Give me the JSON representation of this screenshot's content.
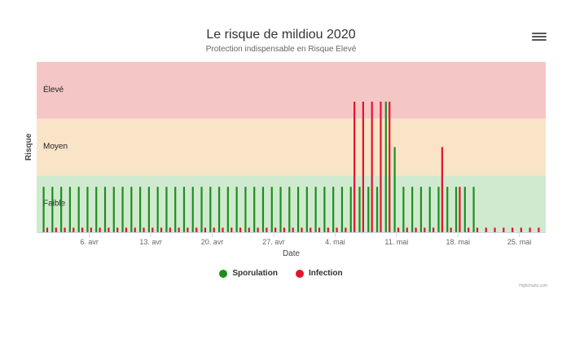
{
  "chart_data": {
    "type": "bar",
    "title": "Le risque de mildiou 2020",
    "subtitle": "Protection indispensable en Risque Elevé",
    "xlabel": "Date",
    "ylabel": "Risque",
    "x_tick_labels": [
      "6. avr",
      "13. avr",
      "20. avr",
      "27. avr",
      "4. mai",
      "11. mai",
      "18. mai",
      "25. mai"
    ],
    "x_tick_dates": [
      "2020-04-06",
      "2020-04-13",
      "2020-04-20",
      "2020-04-27",
      "2020-05-04",
      "2020-05-11",
      "2020-05-18",
      "2020-05-25"
    ],
    "x_range": [
      "2020-03-31",
      "2020-05-28"
    ],
    "ylim": [
      0,
      3
    ],
    "bands": [
      {
        "label": "Faible",
        "from": 0,
        "to": 1,
        "color": "#d0ead0"
      },
      {
        "label": "Moyen",
        "from": 1,
        "to": 2,
        "color": "#f9e4c8"
      },
      {
        "label": "Élevé",
        "from": 2,
        "to": 3,
        "color": "#f5c6c6"
      }
    ],
    "dates": [
      "2020-04-01",
      "2020-04-02",
      "2020-04-03",
      "2020-04-04",
      "2020-04-05",
      "2020-04-06",
      "2020-04-07",
      "2020-04-08",
      "2020-04-09",
      "2020-04-10",
      "2020-04-11",
      "2020-04-12",
      "2020-04-13",
      "2020-04-14",
      "2020-04-15",
      "2020-04-16",
      "2020-04-17",
      "2020-04-18",
      "2020-04-19",
      "2020-04-20",
      "2020-04-21",
      "2020-04-22",
      "2020-04-23",
      "2020-04-24",
      "2020-04-25",
      "2020-04-26",
      "2020-04-27",
      "2020-04-28",
      "2020-04-29",
      "2020-04-30",
      "2020-05-01",
      "2020-05-02",
      "2020-05-03",
      "2020-05-04",
      "2020-05-05",
      "2020-05-06",
      "2020-05-07",
      "2020-05-08",
      "2020-05-09",
      "2020-05-10",
      "2020-05-11",
      "2020-05-12",
      "2020-05-13",
      "2020-05-14",
      "2020-05-15",
      "2020-05-16",
      "2020-05-17",
      "2020-05-18",
      "2020-05-19",
      "2020-05-20",
      "2020-05-21",
      "2020-05-22",
      "2020-05-23",
      "2020-05-24",
      "2020-05-25",
      "2020-05-26",
      "2020-05-27"
    ],
    "series": [
      {
        "name": "Sporulation",
        "color": "#1e8f1e",
        "values": [
          0.8,
          0.8,
          0.8,
          0.8,
          0.8,
          0.8,
          0.8,
          0.8,
          0.8,
          0.8,
          0.8,
          0.8,
          0.8,
          0.8,
          0.8,
          0.8,
          0.8,
          0.8,
          0.8,
          0.8,
          0.8,
          0.8,
          0.8,
          0.8,
          0.8,
          0.8,
          0.8,
          0.8,
          0.8,
          0.8,
          0.8,
          0.8,
          0.8,
          0.8,
          0.8,
          0.8,
          0.8,
          0.8,
          0.8,
          2.3,
          1.5,
          0.8,
          0.8,
          0.8,
          0.8,
          0.8,
          0.8,
          0.8,
          0.8,
          0.8,
          null,
          null,
          null,
          null,
          null,
          null,
          null
        ]
      },
      {
        "name": "Infection",
        "color": "#e3142d",
        "values": [
          0.08,
          0.08,
          0.08,
          0.08,
          0.08,
          0.08,
          0.08,
          0.08,
          0.08,
          0.08,
          0.08,
          0.08,
          0.08,
          0.08,
          0.08,
          0.08,
          0.08,
          0.08,
          0.08,
          0.08,
          0.08,
          0.08,
          0.08,
          0.08,
          0.08,
          0.08,
          0.08,
          0.08,
          0.08,
          0.08,
          0.08,
          0.08,
          0.08,
          0.08,
          0.08,
          2.3,
          2.3,
          2.3,
          2.3,
          2.3,
          0.08,
          0.08,
          0.08,
          0.08,
          0.08,
          1.5,
          0.08,
          0.8,
          0.08,
          0.08,
          0.08,
          0.08,
          0.08,
          0.08,
          0.08,
          0.08,
          0.08
        ]
      }
    ],
    "legend": {
      "position": "bottom",
      "items": [
        "Sporulation",
        "Infection"
      ]
    },
    "grid": false
  },
  "credit": "Highcharts.com",
  "menu": {
    "icon": "hamburger-menu-icon"
  }
}
